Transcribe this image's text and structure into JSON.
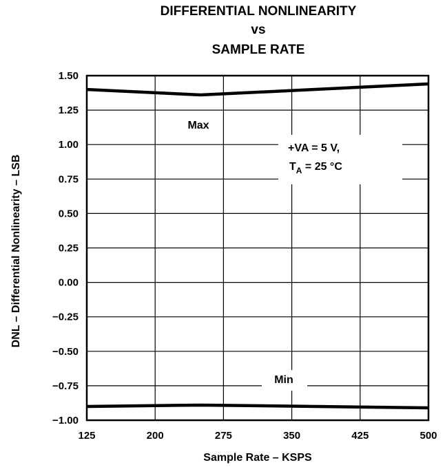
{
  "chart_data": {
    "type": "line",
    "title_lines": [
      "DIFFERENTIAL NONLINEARITY",
      "vs",
      "SAMPLE RATE"
    ],
    "xlabel": "Sample Rate – KSPS",
    "ylabel": "DNL – Differential Nonlinearity – LSB",
    "x_ticks": [
      "125",
      "200",
      "275",
      "350",
      "425",
      "500"
    ],
    "x_tick_values": [
      125,
      200,
      275,
      350,
      425,
      500
    ],
    "y_ticks": [
      "1.50",
      "1.25",
      "1.00",
      "0.75",
      "0.50",
      "0.25",
      "0.00",
      "−0.25",
      "−0.50",
      "−0.75",
      "−1.00"
    ],
    "y_tick_values": [
      1.5,
      1.25,
      1.0,
      0.75,
      0.5,
      0.25,
      0.0,
      -0.25,
      -0.5,
      -0.75,
      -1.0
    ],
    "xlim": [
      125,
      500
    ],
    "ylim": [
      -1.0,
      1.5
    ],
    "grid": true,
    "series": [
      {
        "name": "Max",
        "x": [
          125,
          250,
          500
        ],
        "y": [
          1.4,
          1.36,
          1.44
        ]
      },
      {
        "name": "Min",
        "x": [
          125,
          250,
          500
        ],
        "y": [
          -0.9,
          -0.89,
          -0.91
        ]
      }
    ],
    "annotations": {
      "max_label": "Max",
      "min_label": "Min",
      "conditions_line1": "+VA = 5 V,",
      "conditions_line2_prefix": "T",
      "conditions_line2_sub": "A",
      "conditions_line2_suffix": " = 25 °C"
    }
  }
}
